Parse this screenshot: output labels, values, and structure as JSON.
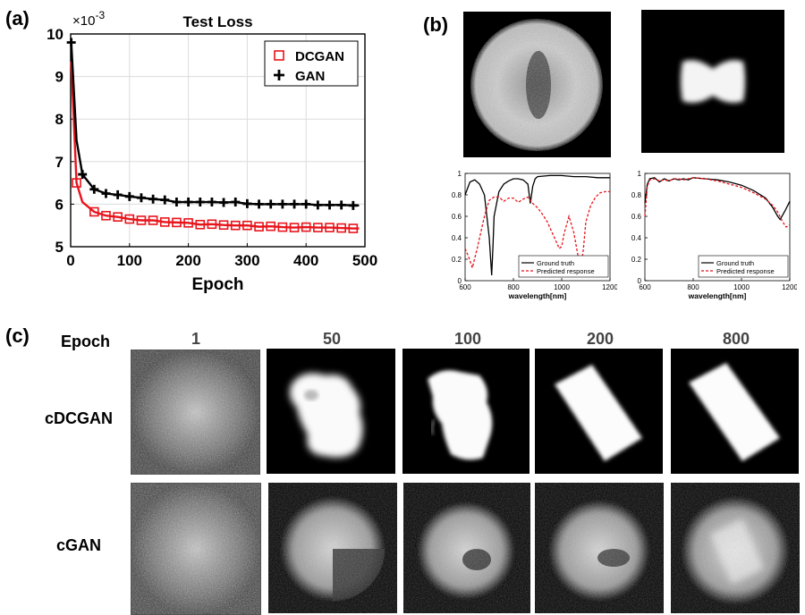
{
  "panels": {
    "a": "(a)",
    "b": "(b)",
    "c": "(c)"
  },
  "chart_data": [
    {
      "type": "line",
      "title": "Test Loss",
      "xlabel": "Epoch",
      "ylabel": "",
      "exponent_label": "×10",
      "exponent_power": "-3",
      "xlim": [
        0,
        500
      ],
      "ylim": [
        5,
        10
      ],
      "xticks": [
        0,
        100,
        200,
        300,
        400,
        500
      ],
      "yticks": [
        5,
        6,
        7,
        8,
        9,
        10
      ],
      "grid": true,
      "legend": "top-right",
      "series": [
        {
          "name": "DCGAN",
          "color": "#e8141b",
          "marker": "square",
          "x": [
            1,
            10,
            20,
            40,
            60,
            80,
            100,
            120,
            140,
            160,
            180,
            200,
            220,
            240,
            260,
            280,
            300,
            320,
            340,
            360,
            380,
            400,
            420,
            440,
            460,
            480,
            490
          ],
          "y": [
            9.35,
            6.5,
            6.05,
            5.82,
            5.73,
            5.7,
            5.65,
            5.62,
            5.62,
            5.58,
            5.57,
            5.56,
            5.52,
            5.53,
            5.51,
            5.5,
            5.5,
            5.47,
            5.48,
            5.46,
            5.45,
            5.46,
            5.45,
            5.45,
            5.44,
            5.43,
            5.43
          ],
          "marker_every": [
            1,
            3,
            4,
            5,
            6,
            7,
            8,
            9,
            10,
            11,
            12,
            13,
            14,
            15,
            16,
            17,
            18,
            19,
            20,
            21,
            22,
            23,
            24,
            25
          ]
        },
        {
          "name": "GAN",
          "color": "#000000",
          "marker": "plus",
          "x": [
            1,
            10,
            20,
            40,
            60,
            80,
            100,
            120,
            140,
            160,
            180,
            200,
            220,
            240,
            260,
            280,
            300,
            320,
            340,
            360,
            380,
            400,
            420,
            440,
            460,
            480,
            490
          ],
          "y": [
            9.8,
            7.5,
            6.7,
            6.35,
            6.25,
            6.22,
            6.18,
            6.15,
            6.12,
            6.1,
            6.05,
            6.05,
            6.05,
            6.05,
            6.04,
            6.05,
            6.01,
            6.0,
            6.0,
            6.0,
            6.0,
            6.0,
            5.98,
            5.98,
            5.98,
            5.97,
            5.97
          ],
          "marker_every": [
            0,
            2,
            3,
            4,
            5,
            6,
            7,
            8,
            9,
            10,
            11,
            12,
            13,
            14,
            15,
            16,
            17,
            18,
            19,
            20,
            21,
            22,
            23,
            24,
            25
          ]
        }
      ]
    },
    {
      "type": "line",
      "title": "",
      "xlabel": "wavelength[nm]",
      "xlim": [
        600,
        1200
      ],
      "ylim": [
        0,
        1
      ],
      "xticks": [
        600,
        800,
        1000,
        1200
      ],
      "yticks": [
        0,
        0.2,
        0.4,
        0.6,
        0.8,
        1
      ],
      "ytick_labels": [
        "0",
        "0.2",
        "0.4",
        "0.6",
        "0.8",
        "1"
      ],
      "legend": "bottom-right",
      "series": [
        {
          "name": "Ground truth",
          "color": "#000000",
          "dash": false,
          "x": [
            600,
            620,
            640,
            660,
            680,
            700,
            710,
            715,
            720,
            740,
            760,
            780,
            800,
            820,
            840,
            860,
            870,
            880,
            890,
            900,
            950,
            1000,
            1050,
            1100,
            1150,
            1200
          ],
          "y": [
            0.8,
            0.92,
            0.94,
            0.9,
            0.8,
            0.4,
            0.05,
            0.3,
            0.6,
            0.83,
            0.9,
            0.93,
            0.95,
            0.95,
            0.94,
            0.9,
            0.72,
            0.88,
            0.95,
            0.97,
            0.98,
            0.98,
            0.97,
            0.97,
            0.96,
            0.96
          ]
        },
        {
          "name": "Predicted response",
          "color": "#e8141b",
          "dash": true,
          "x": [
            600,
            615,
            630,
            650,
            680,
            700,
            720,
            740,
            760,
            780,
            800,
            820,
            840,
            860,
            880,
            900,
            920,
            940,
            960,
            980,
            990,
            1000,
            1010,
            1030,
            1050,
            1070,
            1080,
            1090,
            1100,
            1120,
            1140,
            1160,
            1180,
            1200
          ],
          "y": [
            0.3,
            0.22,
            0.12,
            0.3,
            0.6,
            0.75,
            0.78,
            0.78,
            0.74,
            0.77,
            0.77,
            0.73,
            0.76,
            0.78,
            0.72,
            0.68,
            0.62,
            0.55,
            0.45,
            0.35,
            0.3,
            0.32,
            0.44,
            0.6,
            0.45,
            0.2,
            0.12,
            0.3,
            0.55,
            0.7,
            0.78,
            0.82,
            0.83,
            0.83
          ]
        }
      ]
    },
    {
      "type": "line",
      "title": "",
      "xlabel": "wavelength[nm]",
      "xlim": [
        600,
        1200
      ],
      "ylim": [
        0,
        1
      ],
      "xticks": [
        600,
        800,
        1000,
        1200
      ],
      "yticks": [
        0,
        0.2,
        0.4,
        0.6,
        0.8,
        1
      ],
      "ytick_labels": [
        "0",
        "0.2",
        "0.4",
        "0.6",
        "0.8",
        "1"
      ],
      "legend": "bottom-right",
      "series": [
        {
          "name": "Ground truth",
          "color": "#000000",
          "dash": false,
          "x": [
            600,
            610,
            620,
            640,
            660,
            680,
            700,
            720,
            740,
            760,
            780,
            800,
            850,
            900,
            950,
            1000,
            1050,
            1100,
            1130,
            1150,
            1160,
            1180,
            1200
          ],
          "y": [
            0.72,
            0.9,
            0.95,
            0.96,
            0.92,
            0.95,
            0.93,
            0.95,
            0.94,
            0.95,
            0.94,
            0.96,
            0.95,
            0.94,
            0.92,
            0.89,
            0.84,
            0.77,
            0.68,
            0.6,
            0.57,
            0.65,
            0.74
          ]
        },
        {
          "name": "Predicted response",
          "color": "#e8141b",
          "dash": true,
          "x": [
            600,
            610,
            620,
            640,
            660,
            680,
            700,
            720,
            740,
            760,
            780,
            800,
            850,
            900,
            950,
            1000,
            1050,
            1100,
            1130,
            1150,
            1170,
            1185,
            1200
          ],
          "y": [
            0.6,
            0.88,
            0.94,
            0.95,
            0.93,
            0.94,
            0.93,
            0.95,
            0.95,
            0.94,
            0.95,
            0.96,
            0.95,
            0.93,
            0.9,
            0.87,
            0.82,
            0.76,
            0.7,
            0.64,
            0.55,
            0.5,
            0.52
          ]
        }
      ]
    }
  ],
  "grid_c": {
    "epoch_label": "Epoch",
    "epochs": [
      "1",
      "50",
      "100",
      "200",
      "800"
    ],
    "rows": [
      "cDCGAN",
      "cGAN"
    ]
  }
}
